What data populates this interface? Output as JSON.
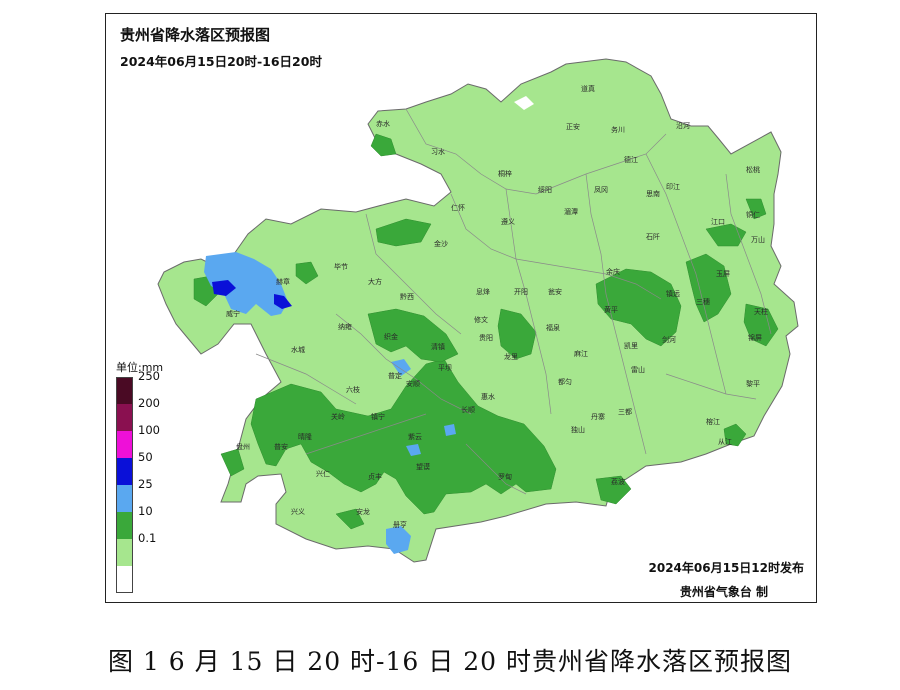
{
  "map": {
    "title": "贵州省降水落区预报图",
    "subtitle": "2024年06月15日20时-16日20时",
    "issued": "2024年06月15日12时发布",
    "issuer": "贵州省气象台 制",
    "province": "贵州省"
  },
  "legend": {
    "unit": "单位:mm",
    "items": [
      {
        "label": "250",
        "color": "#4a0a24"
      },
      {
        "label": "200",
        "color": "#8a1050"
      },
      {
        "label": "100",
        "color": "#ee10d8"
      },
      {
        "label": "50",
        "color": "#0a10d8"
      },
      {
        "label": "25",
        "color": "#5aa8f0"
      },
      {
        "label": "10",
        "color": "#3aa83a"
      },
      {
        "label": "0.1",
        "color": "#a6e68e"
      }
    ],
    "bottom_fill": "#ffffff"
  },
  "counties": [
    "赤水",
    "习水",
    "道真",
    "务川",
    "沿河",
    "正安",
    "德江",
    "印江",
    "松桃",
    "桐梓",
    "绥阳",
    "凤冈",
    "思南",
    "江口",
    "铜仁",
    "遵义",
    "湄潭",
    "石阡",
    "万山",
    "仁怀",
    "金沙",
    "余庆",
    "玉屏",
    "毕节",
    "大方",
    "开阳",
    "瓮安",
    "镇远",
    "三穗",
    "威宁",
    "赫章",
    "黔西",
    "息烽",
    "黄平",
    "天柱",
    "纳雍",
    "织金",
    "修文",
    "贵阳",
    "福泉",
    "凯里",
    "锦屏",
    "水城",
    "清镇",
    "龙里",
    "麻江",
    "剑河",
    "六枝",
    "普定",
    "安顺",
    "平坝",
    "都匀",
    "雷山",
    "黎平",
    "盘州",
    "关岭",
    "镇宁",
    "长顺",
    "惠水",
    "丹寨",
    "榕江",
    "从江",
    "晴隆",
    "紫云",
    "三都",
    "普安",
    "兴仁",
    "贞丰",
    "望谟",
    "罗甸",
    "独山",
    "荔波",
    "兴义",
    "安龙",
    "册亨"
  ],
  "caption": "图 1  6 月 15 日 20 时-16 日 20 时贵州省降水落区预报图"
}
